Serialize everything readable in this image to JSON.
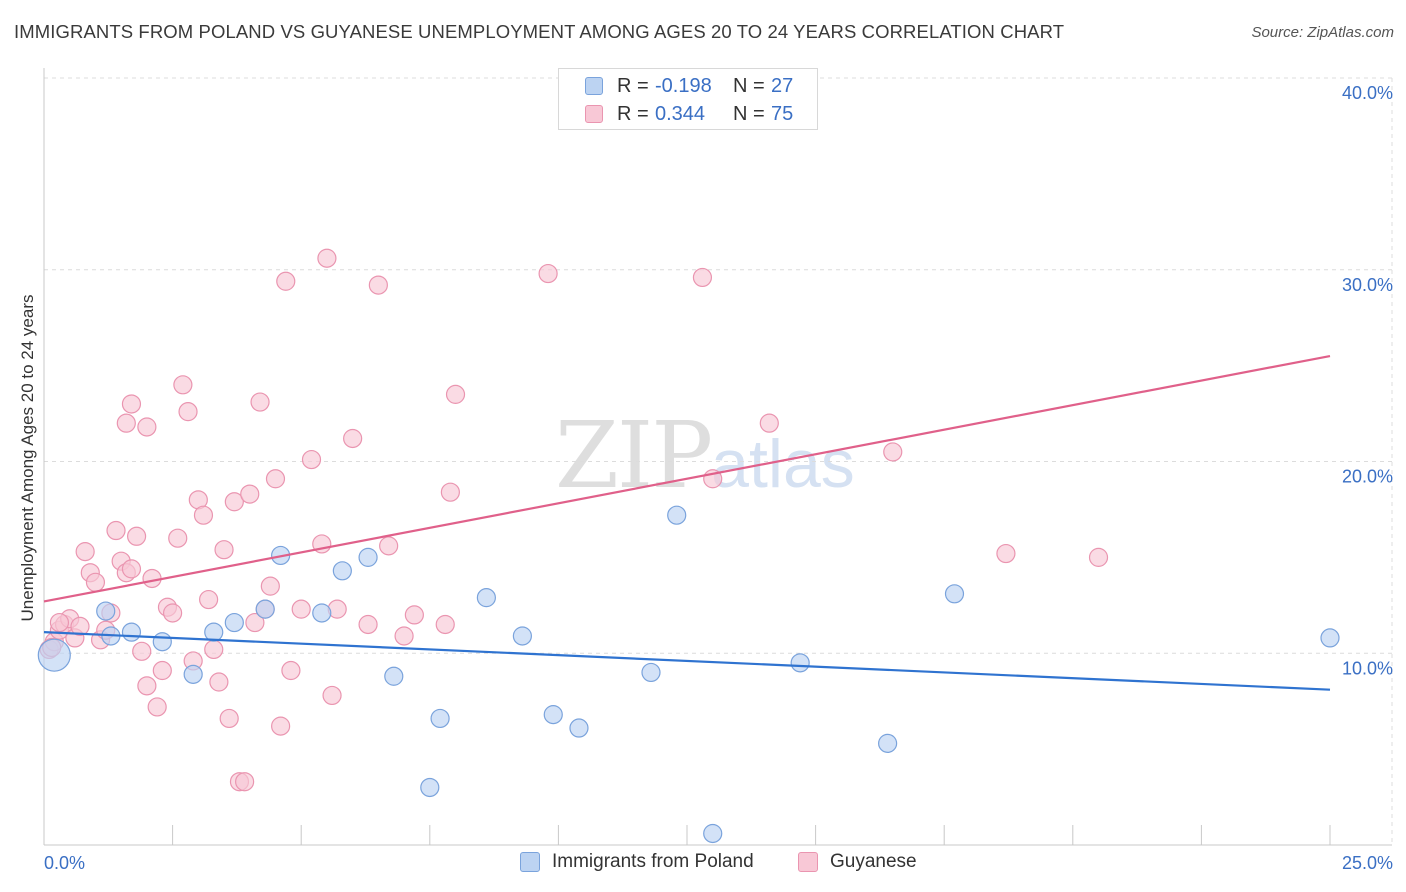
{
  "header": {
    "title": "IMMIGRANTS FROM POLAND VS GUYANESE UNEMPLOYMENT AMONG AGES 20 TO 24 YEARS CORRELATION CHART",
    "source": "Source: ZipAtlas.com"
  },
  "watermark": {
    "zip": "ZIP",
    "atlas": "atlas"
  },
  "legend": {
    "r_label": "R =",
    "n_label": "N =",
    "series": [
      {
        "name": "Immigrants from Poland",
        "r": "-0.198",
        "n": "27",
        "fill": "#bcd3f2",
        "stroke": "#7aa3dc"
      },
      {
        "name": "Guyanese",
        "r": "0.344",
        "n": "75",
        "fill": "#f8c8d6",
        "stroke": "#ea95b0"
      }
    ]
  },
  "colors": {
    "blue_line": "#2f73d0",
    "pink_line": "#e0608a",
    "tick_text": "#3a6fc4",
    "grid": "#dcdcdc"
  },
  "chart_data": {
    "type": "scatter",
    "title": "IMMIGRANTS FROM POLAND VS GUYANESE UNEMPLOYMENT AMONG AGES 20 TO 24 YEARS CORRELATION CHART",
    "xlabel": "",
    "ylabel": "Unemployment Among Ages 20 to 24 years",
    "xlim": [
      0,
      25
    ],
    "ylim": [
      0,
      40
    ],
    "x_tick_labels": [
      {
        "value": 0,
        "label": "0.0%"
      },
      {
        "value": 25,
        "label": "25.0%"
      }
    ],
    "y_tick_labels": [
      {
        "value": 10,
        "label": "10.0%"
      },
      {
        "value": 20,
        "label": "20.0%"
      },
      {
        "value": 30,
        "label": "30.0%"
      },
      {
        "value": 40,
        "label": "40.0%"
      }
    ],
    "grid": true,
    "series": [
      {
        "name": "Immigrants from Poland",
        "trend": {
          "x": [
            0,
            25
          ],
          "y": [
            11.1,
            8.1
          ]
        },
        "points": [
          [
            0.2,
            9.9,
            16
          ],
          [
            1.2,
            12.2,
            9
          ],
          [
            1.7,
            11.1,
            9
          ],
          [
            2.3,
            10.6,
            9
          ],
          [
            2.9,
            8.9,
            9
          ],
          [
            3.3,
            11.1,
            9
          ],
          [
            3.7,
            11.6,
            9
          ],
          [
            4.3,
            12.3,
            9
          ],
          [
            4.6,
            15.1,
            9
          ],
          [
            5.4,
            12.1,
            9
          ],
          [
            5.8,
            14.3,
            9
          ],
          [
            6.3,
            15.0,
            9
          ],
          [
            6.8,
            8.8,
            9
          ],
          [
            7.5,
            3.0,
            9
          ],
          [
            7.7,
            6.6,
            9
          ],
          [
            8.6,
            12.9,
            9
          ],
          [
            9.3,
            10.9,
            9
          ],
          [
            9.9,
            6.8,
            9
          ],
          [
            10.4,
            6.1,
            9
          ],
          [
            11.8,
            9.0,
            9
          ],
          [
            12.3,
            17.2,
            9
          ],
          [
            13.0,
            0.6,
            9
          ],
          [
            14.7,
            9.5,
            9
          ],
          [
            16.4,
            5.3,
            9
          ],
          [
            17.7,
            13.1,
            9
          ],
          [
            25.0,
            10.8,
            9
          ],
          [
            1.3,
            10.9,
            9
          ]
        ]
      },
      {
        "name": "Guyanese",
        "trend": {
          "x": [
            0,
            25
          ],
          "y": [
            12.7,
            25.5
          ]
        },
        "points": [
          [
            0.1,
            10.2,
            9
          ],
          [
            0.2,
            10.6,
            9
          ],
          [
            0.3,
            11.2,
            9
          ],
          [
            0.4,
            11.5,
            9
          ],
          [
            0.5,
            11.8,
            9
          ],
          [
            0.6,
            10.8,
            9
          ],
          [
            0.7,
            11.4,
            9
          ],
          [
            0.8,
            15.3,
            9
          ],
          [
            0.9,
            14.2,
            9
          ],
          [
            1.0,
            13.7,
            9
          ],
          [
            1.1,
            10.7,
            9
          ],
          [
            1.2,
            11.2,
            9
          ],
          [
            1.3,
            12.1,
            9
          ],
          [
            1.4,
            16.4,
            9
          ],
          [
            1.5,
            14.8,
            9
          ],
          [
            1.6,
            14.2,
            9
          ],
          [
            1.7,
            14.4,
            9
          ],
          [
            1.8,
            16.1,
            9
          ],
          [
            1.9,
            10.1,
            9
          ],
          [
            2.0,
            8.3,
            9
          ],
          [
            2.1,
            13.9,
            9
          ],
          [
            2.2,
            7.2,
            9
          ],
          [
            2.3,
            9.1,
            9
          ],
          [
            2.4,
            12.4,
            9
          ],
          [
            2.5,
            12.1,
            9
          ],
          [
            2.6,
            16.0,
            9
          ],
          [
            2.7,
            24.0,
            9
          ],
          [
            2.8,
            22.6,
            9
          ],
          [
            2.9,
            9.6,
            9
          ],
          [
            3.0,
            18.0,
            9
          ],
          [
            3.1,
            17.2,
            9
          ],
          [
            3.2,
            12.8,
            9
          ],
          [
            3.3,
            10.2,
            9
          ],
          [
            3.4,
            8.5,
            9
          ],
          [
            3.5,
            15.4,
            9
          ],
          [
            3.6,
            6.6,
            9
          ],
          [
            3.7,
            17.9,
            9
          ],
          [
            3.8,
            3.3,
            9
          ],
          [
            3.9,
            3.3,
            9
          ],
          [
            4.0,
            18.3,
            9
          ],
          [
            4.1,
            11.6,
            9
          ],
          [
            4.2,
            23.1,
            9
          ],
          [
            4.3,
            12.3,
            9
          ],
          [
            4.4,
            13.5,
            9
          ],
          [
            4.5,
            19.1,
            9
          ],
          [
            4.6,
            6.2,
            9
          ],
          [
            4.7,
            29.4,
            9
          ],
          [
            4.8,
            9.1,
            9
          ],
          [
            5.0,
            12.3,
            9
          ],
          [
            5.2,
            20.1,
            9
          ],
          [
            5.4,
            15.7,
            9
          ],
          [
            5.5,
            30.6,
            9
          ],
          [
            5.6,
            7.8,
            9
          ],
          [
            5.7,
            12.3,
            9
          ],
          [
            6.0,
            21.2,
            9
          ],
          [
            6.3,
            11.5,
            9
          ],
          [
            6.5,
            29.2,
            9
          ],
          [
            6.7,
            15.6,
            9
          ],
          [
            7.0,
            10.9,
            9
          ],
          [
            7.2,
            12.0,
            9
          ],
          [
            7.8,
            11.5,
            9
          ],
          [
            7.9,
            18.4,
            9
          ],
          [
            8.0,
            23.5,
            9
          ],
          [
            9.8,
            29.8,
            9
          ],
          [
            12.8,
            29.6,
            9
          ],
          [
            13.0,
            19.1,
            9
          ],
          [
            14.1,
            22.0,
            9
          ],
          [
            16.5,
            20.5,
            9
          ],
          [
            18.7,
            15.2,
            9
          ],
          [
            20.5,
            15.0,
            9
          ],
          [
            1.6,
            22.0,
            9
          ],
          [
            1.7,
            23.0,
            9
          ],
          [
            2.0,
            21.8,
            9
          ],
          [
            0.15,
            10.3,
            9
          ],
          [
            0.3,
            11.6,
            9
          ]
        ]
      }
    ]
  }
}
